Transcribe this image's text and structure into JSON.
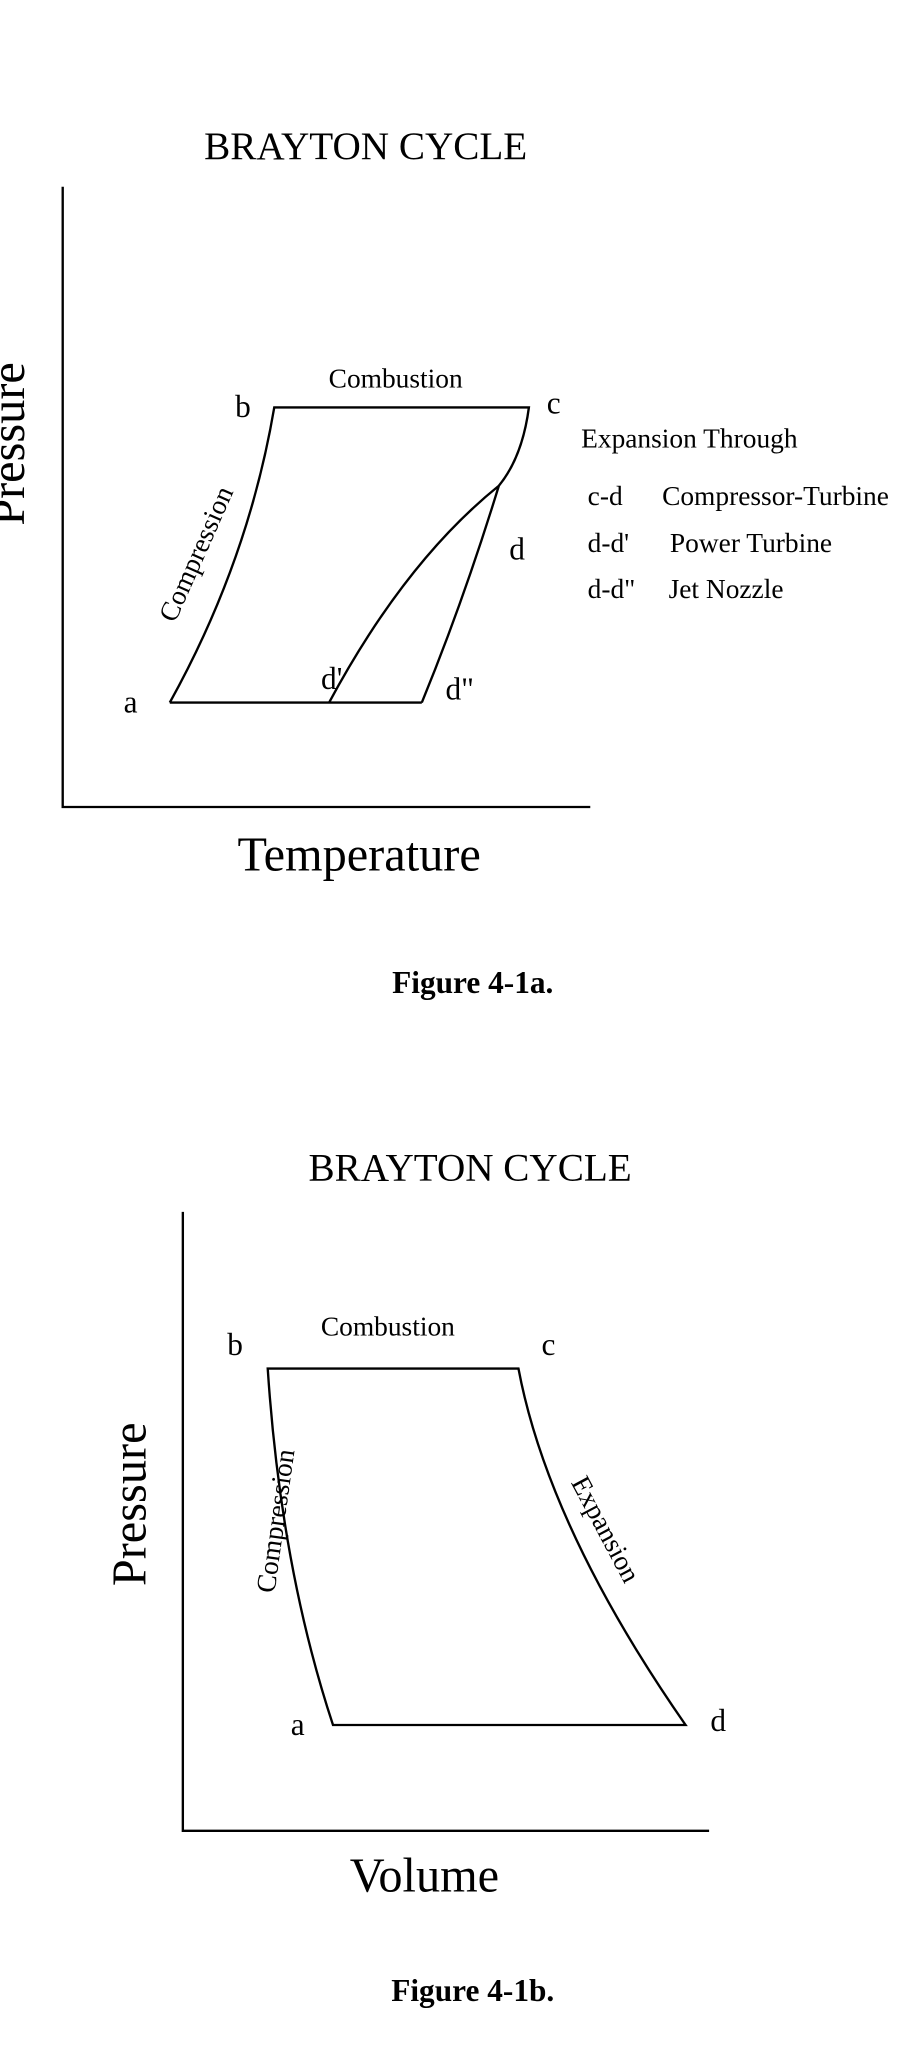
{
  "figures": [
    {
      "title": "BRAYTON CYCLE",
      "y_axis_label": "Pressure",
      "x_axis_label": "Temperature",
      "points": [
        "a",
        "b",
        "c",
        "d",
        "d'",
        "d\""
      ],
      "processes": [
        "Combustion",
        "Compression"
      ],
      "legend": {
        "title": "Expansion Through",
        "items": [
          [
            "c-d",
            "Compressor-Turbine"
          ],
          [
            "d-d'",
            "Power Turbine"
          ],
          [
            "d-d\"",
            "Jet Nozzle"
          ]
        ]
      },
      "caption": "Figure 4-1a."
    },
    {
      "title": "BRAYTON CYCLE",
      "y_axis_label": "Pressure",
      "x_axis_label": "Volume",
      "points": [
        "a",
        "b",
        "c",
        "d"
      ],
      "processes": [
        "Combustion",
        "Compression",
        "Expansion"
      ],
      "caption": "Figure 4-1b."
    }
  ]
}
